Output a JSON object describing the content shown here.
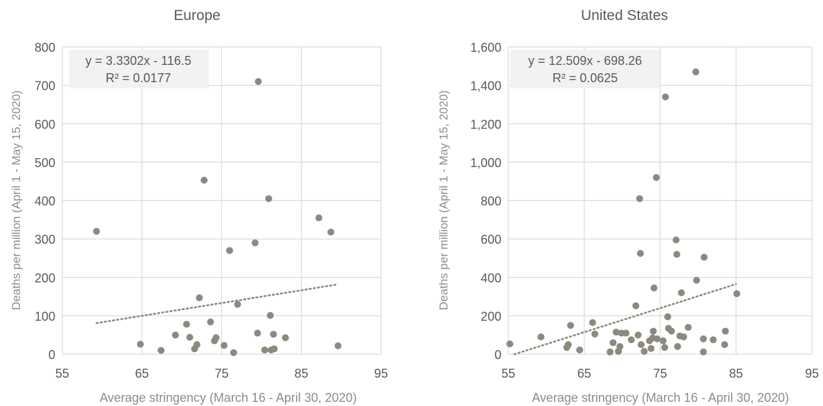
{
  "chart_data": [
    {
      "type": "scatter",
      "title": "Europe",
      "xlabel": "Average stringency (March 16 - April 30, 2020)",
      "ylabel": "Deaths per million (April 1 - May 15, 2020)",
      "xlim": [
        55,
        95
      ],
      "ylim": [
        0,
        800
      ],
      "xticks": [
        55,
        65,
        75,
        85,
        95
      ],
      "yticks": [
        0,
        100,
        200,
        300,
        400,
        500,
        600,
        700,
        800
      ],
      "xtick_labels": [
        "55",
        "65",
        "75",
        "85",
        "95"
      ],
      "ytick_labels": [
        "0",
        "100",
        "200",
        "300",
        "400",
        "500",
        "600",
        "700",
        "800"
      ],
      "grid": true,
      "legend": "none",
      "point_color": "#8c8a7e",
      "trend_color": "#8c8a7e",
      "trendline": {
        "slope": 3.3302,
        "intercept": -116.5,
        "x_range": [
          59.3,
          89.6
        ],
        "equation": "y = 3.3302x - 116.5",
        "r2": "R² = 0.0177"
      },
      "series": [
        {
          "points": [
            [
              59.3,
              320
            ],
            [
              64.8,
              26
            ],
            [
              67.4,
              10
            ],
            [
              69.2,
              50
            ],
            [
              70.6,
              78
            ],
            [
              71.0,
              44
            ],
            [
              71.6,
              14
            ],
            [
              71.9,
              25
            ],
            [
              72.2,
              147
            ],
            [
              72.8,
              453
            ],
            [
              73.6,
              84
            ],
            [
              74.1,
              35
            ],
            [
              74.3,
              43
            ],
            [
              75.3,
              23
            ],
            [
              76.0,
              270
            ],
            [
              76.5,
              4
            ],
            [
              77.0,
              130
            ],
            [
              79.2,
              290
            ],
            [
              79.5,
              55
            ],
            [
              79.6,
              710
            ],
            [
              80.4,
              11
            ],
            [
              80.9,
              405
            ],
            [
              81.1,
              101
            ],
            [
              81.2,
              11
            ],
            [
              81.5,
              52
            ],
            [
              81.6,
              14
            ],
            [
              83.0,
              43
            ],
            [
              87.2,
              355
            ],
            [
              88.7,
              318
            ],
            [
              89.6,
              22
            ]
          ]
        }
      ]
    },
    {
      "type": "scatter",
      "title": "United States",
      "xlabel": "Average stringency (March 16 - April 30, 2020)",
      "ylabel": "Deaths per million (April 1 - May 15, 2020)",
      "xlim": [
        55,
        95
      ],
      "ylim": [
        0,
        1600
      ],
      "xticks": [
        55,
        65,
        75,
        85,
        95
      ],
      "yticks": [
        0,
        200,
        400,
        600,
        800,
        1000,
        1200,
        1400,
        1600
      ],
      "xtick_labels": [
        "55",
        "65",
        "75",
        "85",
        "95"
      ],
      "ytick_labels": [
        "0",
        "200",
        "400",
        "600",
        "800",
        "1,000",
        "1,200",
        "1,400",
        "1,600"
      ],
      "grid": true,
      "legend": "none",
      "point_color": "#8c8a7e",
      "trend_color": "#8c8a7e",
      "trendline": {
        "slope": 12.509,
        "intercept": -698.26,
        "x_range": [
          55.8,
          85
        ],
        "equation": "y = 12.509x - 698.26",
        "r2": "R² = 0.0625"
      },
      "series": [
        {
          "points": [
            [
              55.2,
              54
            ],
            [
              59.3,
              90
            ],
            [
              62.7,
              35
            ],
            [
              62.9,
              50
            ],
            [
              63.2,
              150
            ],
            [
              64.4,
              22
            ],
            [
              66.1,
              165
            ],
            [
              66.4,
              105
            ],
            [
              68.4,
              12
            ],
            [
              68.8,
              60
            ],
            [
              69.2,
              115
            ],
            [
              69.5,
              15
            ],
            [
              69.7,
              40
            ],
            [
              69.9,
              110
            ],
            [
              70.5,
              110
            ],
            [
              71.2,
              75
            ],
            [
              71.8,
              252
            ],
            [
              72.1,
              100
            ],
            [
              72.3,
              810
            ],
            [
              72.4,
              525
            ],
            [
              72.5,
              50
            ],
            [
              72.9,
              15
            ],
            [
              73.6,
              70
            ],
            [
              73.8,
              30
            ],
            [
              74.0,
              85
            ],
            [
              74.1,
              120
            ],
            [
              74.2,
              345
            ],
            [
              74.5,
              920
            ],
            [
              74.6,
              80
            ],
            [
              75.4,
              70
            ],
            [
              75.6,
              35
            ],
            [
              75.7,
              1340
            ],
            [
              76.0,
              195
            ],
            [
              76.1,
              135
            ],
            [
              76.5,
              120
            ],
            [
              77.1,
              595
            ],
            [
              77.2,
              520
            ],
            [
              77.3,
              40
            ],
            [
              77.6,
              95
            ],
            [
              77.8,
              320
            ],
            [
              78.1,
              90
            ],
            [
              78.7,
              140
            ],
            [
              79.7,
              1470
            ],
            [
              79.8,
              385
            ],
            [
              80.7,
              80
            ],
            [
              80.8,
              505
            ],
            [
              80.7,
              12
            ],
            [
              82.0,
              75
            ],
            [
              83.5,
              50
            ],
            [
              83.6,
              120
            ],
            [
              85.1,
              315
            ]
          ]
        }
      ]
    }
  ]
}
